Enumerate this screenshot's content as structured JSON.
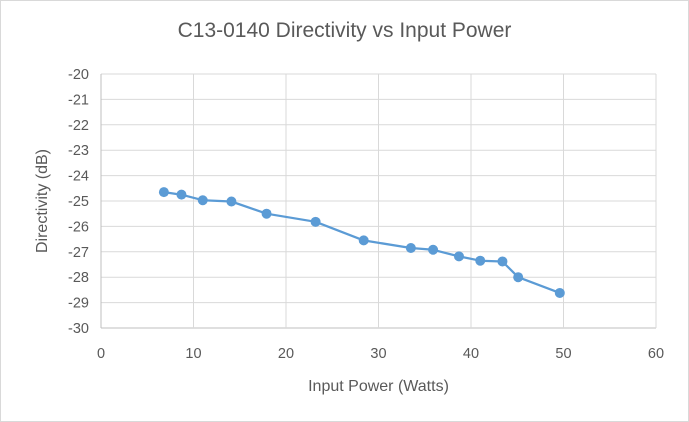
{
  "chart_data": {
    "type": "scatter",
    "title": "C13-0140 Directivity vs Input Power",
    "xlabel": "Input Power (Watts)",
    "ylabel": "Directivity (dB)",
    "xlim": [
      0,
      60
    ],
    "ylim": [
      -30,
      -20
    ],
    "xticks": [
      0,
      10,
      20,
      30,
      40,
      50,
      60
    ],
    "yticks": [
      -20,
      -21,
      -22,
      -23,
      -24,
      -25,
      -26,
      -27,
      -28,
      -29,
      -30
    ],
    "grid": true,
    "legend": "none",
    "series": [
      {
        "color": "#5b9bd5",
        "points": [
          [
            6.8,
            -24.65
          ],
          [
            8.7,
            -24.75
          ],
          [
            11.0,
            -24.97
          ],
          [
            14.1,
            -25.02
          ],
          [
            17.9,
            -25.5
          ],
          [
            23.2,
            -25.82
          ],
          [
            28.4,
            -26.55
          ],
          [
            33.5,
            -26.85
          ],
          [
            35.9,
            -26.92
          ],
          [
            38.7,
            -27.18
          ],
          [
            41.0,
            -27.35
          ],
          [
            43.4,
            -27.38
          ],
          [
            45.1,
            -28.0
          ],
          [
            49.6,
            -28.62
          ]
        ]
      }
    ]
  }
}
